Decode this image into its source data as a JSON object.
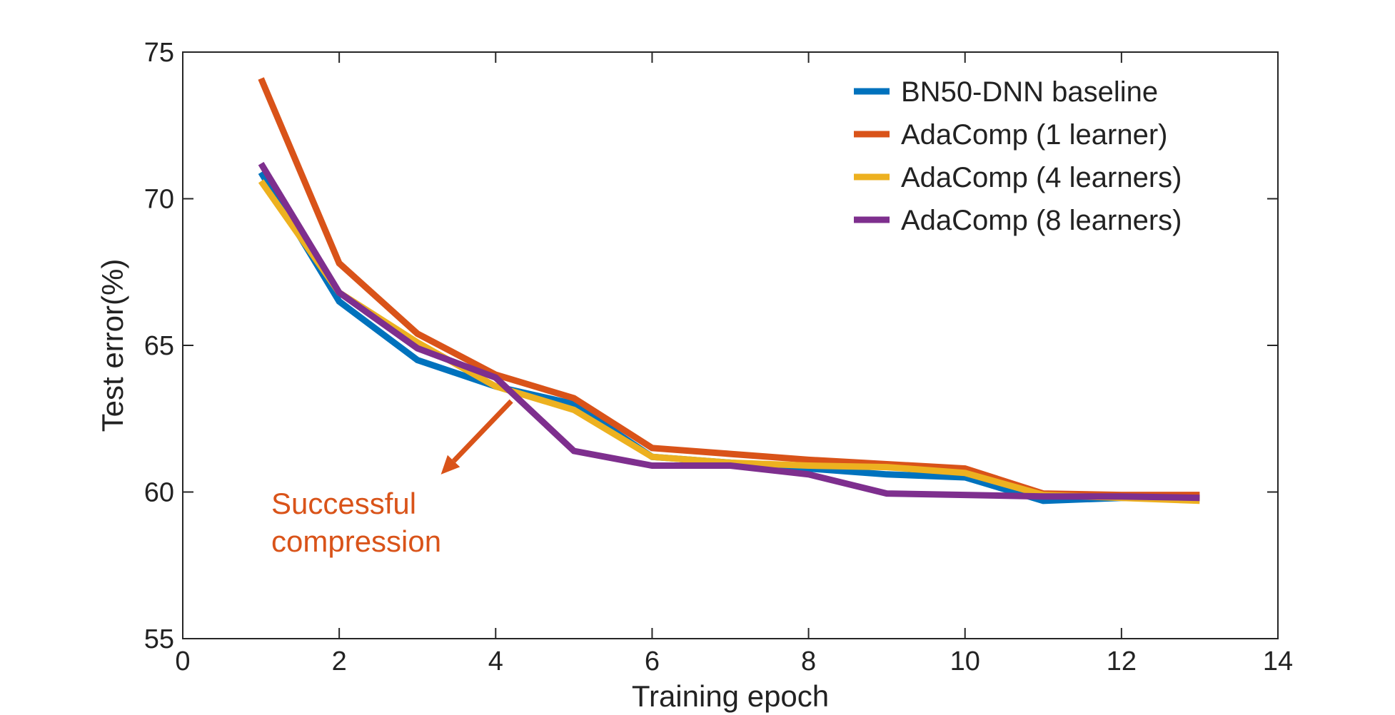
{
  "chart_data": {
    "type": "line",
    "title": "",
    "xlabel": "Training epoch",
    "ylabel": "Test error(%)",
    "xlim": [
      0,
      14
    ],
    "ylim": [
      55,
      75
    ],
    "xticks": [
      0,
      2,
      4,
      6,
      8,
      10,
      12,
      14
    ],
    "yticks": [
      55,
      60,
      65,
      70,
      75
    ],
    "xtick_labels": [
      "0",
      "2",
      "4",
      "6",
      "8",
      "10",
      "12",
      "14"
    ],
    "ytick_labels": [
      "55",
      "60",
      "65",
      "70",
      "75"
    ],
    "grid": false,
    "legend_position": "top-right",
    "x": [
      1,
      2,
      3,
      4,
      5,
      6,
      7,
      8,
      9,
      10,
      11,
      12,
      13
    ],
    "series": [
      {
        "name": "BN50-DNN baseline",
        "color": "#0072BD",
        "values": [
          70.9,
          66.5,
          64.5,
          63.6,
          63.0,
          61.2,
          61.0,
          60.8,
          60.6,
          60.5,
          59.7,
          59.8,
          59.8
        ]
      },
      {
        "name": "AdaComp (1 learner)",
        "color": "#D95319",
        "values": [
          74.1,
          67.8,
          65.4,
          64.0,
          63.2,
          61.5,
          61.3,
          61.1,
          60.95,
          60.8,
          59.95,
          59.9,
          59.9
        ]
      },
      {
        "name": "AdaComp (4 learners)",
        "color": "#EDB120",
        "values": [
          70.6,
          66.8,
          65.1,
          63.6,
          62.8,
          61.2,
          61.0,
          60.9,
          60.85,
          60.65,
          59.9,
          59.8,
          59.7
        ]
      },
      {
        "name": "AdaComp (8 learners)",
        "color": "#7E2F8E",
        "values": [
          71.2,
          66.8,
          64.9,
          63.9,
          61.4,
          60.9,
          60.9,
          60.6,
          59.95,
          59.9,
          59.85,
          59.85,
          59.8
        ]
      }
    ],
    "annotations": [
      {
        "lines": [
          "Successful",
          "compression"
        ],
        "color": "#D95319",
        "arrow_from": [
          4.2,
          63.1
        ],
        "arrow_to": [
          3.3,
          60.6
        ]
      }
    ]
  }
}
